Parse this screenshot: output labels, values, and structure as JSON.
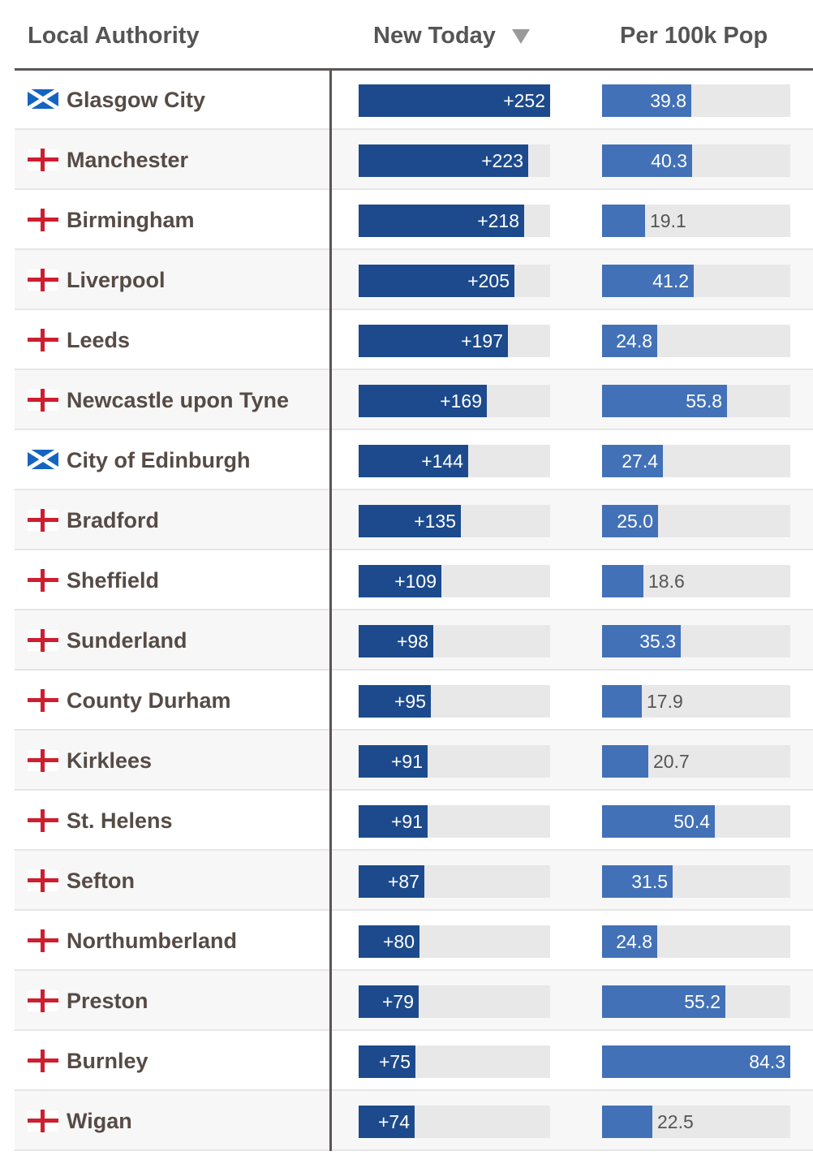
{
  "header": {
    "col_authority": "Local Authority",
    "col_new_today": "New Today",
    "col_per_100k": "Per 100k Pop"
  },
  "colors": {
    "new_bar": "#1c4a8c",
    "per_bar": "#4271b7",
    "track": "#e8e8e8",
    "england_cross": "#cc1f2f",
    "scotland_blue": "#1565c0"
  },
  "chart_data": {
    "type": "table",
    "title": "",
    "sort": "New Today descending",
    "new_today_max": 252,
    "per_100k_max": 84.3,
    "rows": [
      {
        "name": "Glasgow City",
        "flag": "scotland-flag-icon",
        "new_today": 252,
        "new_today_label": "+252",
        "per_100k": 39.8,
        "per_100k_label": "39.8"
      },
      {
        "name": "Manchester",
        "flag": "england-flag-icon",
        "new_today": 223,
        "new_today_label": "+223",
        "per_100k": 40.3,
        "per_100k_label": "40.3"
      },
      {
        "name": "Birmingham",
        "flag": "england-flag-icon",
        "new_today": 218,
        "new_today_label": "+218",
        "per_100k": 19.1,
        "per_100k_label": "19.1"
      },
      {
        "name": "Liverpool",
        "flag": "england-flag-icon",
        "new_today": 205,
        "new_today_label": "+205",
        "per_100k": 41.2,
        "per_100k_label": "41.2"
      },
      {
        "name": "Leeds",
        "flag": "england-flag-icon",
        "new_today": 197,
        "new_today_label": "+197",
        "per_100k": 24.8,
        "per_100k_label": "24.8"
      },
      {
        "name": "Newcastle upon Tyne",
        "flag": "england-flag-icon",
        "new_today": 169,
        "new_today_label": "+169",
        "per_100k": 55.8,
        "per_100k_label": "55.8"
      },
      {
        "name": "City of Edinburgh",
        "flag": "scotland-flag-icon",
        "new_today": 144,
        "new_today_label": "+144",
        "per_100k": 27.4,
        "per_100k_label": "27.4"
      },
      {
        "name": "Bradford",
        "flag": "england-flag-icon",
        "new_today": 135,
        "new_today_label": "+135",
        "per_100k": 25.0,
        "per_100k_label": "25.0"
      },
      {
        "name": "Sheffield",
        "flag": "england-flag-icon",
        "new_today": 109,
        "new_today_label": "+109",
        "per_100k": 18.6,
        "per_100k_label": "18.6"
      },
      {
        "name": "Sunderland",
        "flag": "england-flag-icon",
        "new_today": 98,
        "new_today_label": "+98",
        "per_100k": 35.3,
        "per_100k_label": "35.3"
      },
      {
        "name": "County Durham",
        "flag": "england-flag-icon",
        "new_today": 95,
        "new_today_label": "+95",
        "per_100k": 17.9,
        "per_100k_label": "17.9"
      },
      {
        "name": "Kirklees",
        "flag": "england-flag-icon",
        "new_today": 91,
        "new_today_label": "+91",
        "per_100k": 20.7,
        "per_100k_label": "20.7"
      },
      {
        "name": "St. Helens",
        "flag": "england-flag-icon",
        "new_today": 91,
        "new_today_label": "+91",
        "per_100k": 50.4,
        "per_100k_label": "50.4"
      },
      {
        "name": "Sefton",
        "flag": "england-flag-icon",
        "new_today": 87,
        "new_today_label": "+87",
        "per_100k": 31.5,
        "per_100k_label": "31.5"
      },
      {
        "name": "Northumberland",
        "flag": "england-flag-icon",
        "new_today": 80,
        "new_today_label": "+80",
        "per_100k": 24.8,
        "per_100k_label": "24.8"
      },
      {
        "name": "Preston",
        "flag": "england-flag-icon",
        "new_today": 79,
        "new_today_label": "+79",
        "per_100k": 55.2,
        "per_100k_label": "55.2"
      },
      {
        "name": "Burnley",
        "flag": "england-flag-icon",
        "new_today": 75,
        "new_today_label": "+75",
        "per_100k": 84.3,
        "per_100k_label": "84.3"
      },
      {
        "name": "Wigan",
        "flag": "england-flag-icon",
        "new_today": 74,
        "new_today_label": "+74",
        "per_100k": 22.5,
        "per_100k_label": "22.5"
      }
    ]
  }
}
